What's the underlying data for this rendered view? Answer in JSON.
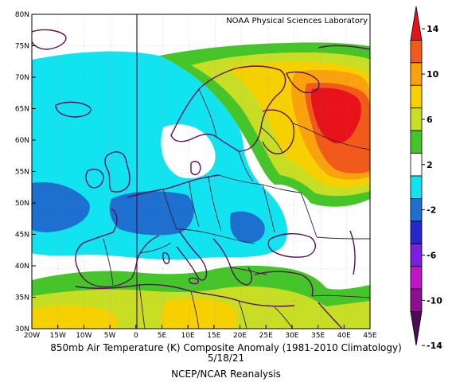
{
  "map": {
    "source_label": "NOAA Physical Sciences Laboratory",
    "lat_ticks": [
      "80N",
      "75N",
      "70N",
      "65N",
      "60N",
      "55N",
      "50N",
      "45N",
      "40N",
      "35N",
      "30N"
    ],
    "lon_ticks": [
      "20W",
      "15W",
      "10W",
      "5W",
      "0",
      "5E",
      "10E",
      "15E",
      "20E",
      "25E",
      "30E",
      "35E",
      "40E",
      "45E"
    ]
  },
  "caption": {
    "line1": "850mb Air Temperature (K) Composite Anomaly (1981-2010 Climatology)",
    "line2": "5/18/21",
    "line3": "NCEP/NCAR Reanalysis"
  },
  "colorbar": {
    "labels": [
      "14",
      "10",
      "6",
      "2",
      "-2",
      "-6",
      "-10",
      "-14"
    ],
    "colors": {
      "c14": "#e8121a",
      "c12": "#f25a1c",
      "c10": "#f9a20d",
      "c8": "#f7d000",
      "c6": "#c8de25",
      "c4": "#45c52a",
      "c2": "#ffffff",
      "cm2": "#11e4f0",
      "cm4": "#1d6fd0",
      "cm6": "#2626d0",
      "cm8": "#7d1de0",
      "cm10": "#c014c8",
      "cm12": "#8a1090",
      "cm14": "#4a0e55"
    }
  }
}
